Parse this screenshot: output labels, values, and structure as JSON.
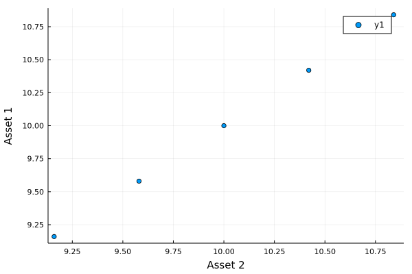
{
  "chart_data": {
    "type": "scatter",
    "xlabel": "Asset 2",
    "ylabel": "Asset 1",
    "xlim": [
      9.13,
      10.89
    ],
    "ylim": [
      9.11,
      10.89
    ],
    "xticks": [
      9.25,
      9.5,
      9.75,
      10.0,
      10.25,
      10.5,
      10.75
    ],
    "xtick_labels": [
      "9.25",
      "9.50",
      "9.75",
      "10.00",
      "10.25",
      "10.50",
      "10.75"
    ],
    "yticks": [
      9.25,
      9.5,
      9.75,
      10.0,
      10.25,
      10.5,
      10.75
    ],
    "ytick_labels": [
      "9.25",
      "9.50",
      "9.75",
      "10.00",
      "10.25",
      "10.50",
      "10.75"
    ],
    "grid": true,
    "legend_position": "top-right",
    "series": [
      {
        "name": "y1",
        "color": "#009af9",
        "x": [
          9.16,
          9.58,
          10.0,
          10.42,
          10.84
        ],
        "y": [
          9.16,
          9.58,
          10.0,
          10.42,
          10.84
        ]
      }
    ]
  }
}
